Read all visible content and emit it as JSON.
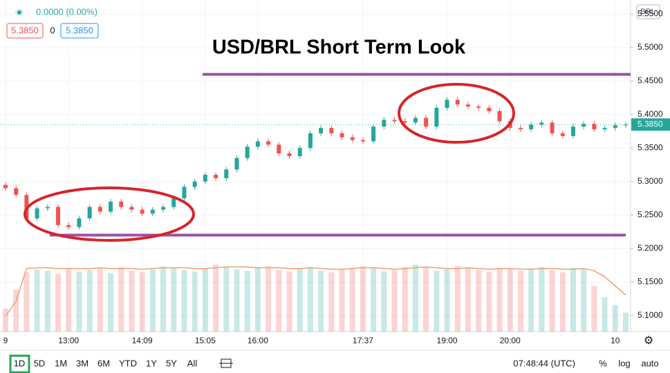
{
  "header": {
    "change": "0.0000 (0.00%)",
    "bid": "5.3850",
    "spread": "0",
    "ask": "5.3850",
    "currency": "BRL"
  },
  "chart_data": {
    "type": "candlestick",
    "title": "USD/BRL Short Term Look",
    "categories": [
      "9",
      null,
      null,
      null,
      null,
      null,
      "13:00",
      null,
      null,
      null,
      null,
      null,
      null,
      "14:09",
      null,
      null,
      null,
      null,
      null,
      "15:05",
      null,
      null,
      null,
      null,
      "16:00",
      null,
      null,
      null,
      null,
      null,
      null,
      null,
      null,
      null,
      "17:37",
      null,
      null,
      null,
      null,
      null,
      null,
      null,
      "19:00",
      null,
      null,
      null,
      null,
      null,
      "20:00",
      null,
      null,
      null,
      null,
      null,
      null,
      null,
      null,
      null,
      "10",
      null
    ],
    "open": [
      5.295,
      5.29,
      5.28,
      5.245,
      5.26,
      5.262,
      5.235,
      5.232,
      5.245,
      5.262,
      5.255,
      5.27,
      5.262,
      5.258,
      5.252,
      5.258,
      5.262,
      5.275,
      5.292,
      5.3,
      5.31,
      5.305,
      5.318,
      5.335,
      5.352,
      5.36,
      5.355,
      5.342,
      5.338,
      5.35,
      5.372,
      5.38,
      5.372,
      5.366,
      5.362,
      5.36,
      5.382,
      5.392,
      5.39,
      5.388,
      5.395,
      5.382,
      5.41,
      5.422,
      5.415,
      5.412,
      5.41,
      5.405,
      5.39,
      5.38,
      5.378,
      5.385,
      5.388,
      5.372,
      5.368,
      5.382,
      5.386,
      5.378,
      5.38,
      5.384
    ],
    "high": [
      5.299,
      5.294,
      5.284,
      5.264,
      5.266,
      5.266,
      5.239,
      5.249,
      5.266,
      5.266,
      5.274,
      5.274,
      5.266,
      5.262,
      5.262,
      5.266,
      5.279,
      5.296,
      5.304,
      5.314,
      5.314,
      5.322,
      5.339,
      5.356,
      5.364,
      5.364,
      5.359,
      5.346,
      5.354,
      5.376,
      5.384,
      5.384,
      5.376,
      5.37,
      5.366,
      5.386,
      5.396,
      5.396,
      5.394,
      5.399,
      5.399,
      5.414,
      5.426,
      5.426,
      5.419,
      5.416,
      5.414,
      5.409,
      5.394,
      5.384,
      5.389,
      5.392,
      5.392,
      5.376,
      5.386,
      5.39,
      5.39,
      5.384,
      5.388,
      5.389
    ],
    "low": [
      5.286,
      5.276,
      5.241,
      5.241,
      5.256,
      5.231,
      5.228,
      5.228,
      5.241,
      5.251,
      5.251,
      5.258,
      5.254,
      5.248,
      5.248,
      5.254,
      5.258,
      5.271,
      5.288,
      5.296,
      5.301,
      5.301,
      5.314,
      5.331,
      5.348,
      5.351,
      5.338,
      5.334,
      5.334,
      5.346,
      5.368,
      5.368,
      5.362,
      5.358,
      5.356,
      5.356,
      5.378,
      5.386,
      5.384,
      5.384,
      5.378,
      5.378,
      5.406,
      5.411,
      5.408,
      5.406,
      5.401,
      5.386,
      5.376,
      5.374,
      5.374,
      5.381,
      5.368,
      5.364,
      5.364,
      5.378,
      5.374,
      5.374,
      5.376,
      5.38
    ],
    "close": [
      5.29,
      5.28,
      5.245,
      5.26,
      5.262,
      5.235,
      5.232,
      5.245,
      5.262,
      5.255,
      5.27,
      5.262,
      5.258,
      5.252,
      5.258,
      5.262,
      5.275,
      5.292,
      5.3,
      5.31,
      5.305,
      5.318,
      5.335,
      5.352,
      5.36,
      5.355,
      5.342,
      5.338,
      5.35,
      5.372,
      5.38,
      5.372,
      5.366,
      5.362,
      5.36,
      5.382,
      5.392,
      5.39,
      5.388,
      5.395,
      5.382,
      5.41,
      5.422,
      5.415,
      5.412,
      5.41,
      5.405,
      5.39,
      5.38,
      5.378,
      5.385,
      5.388,
      5.372,
      5.368,
      5.382,
      5.386,
      5.378,
      5.38,
      5.384,
      5.385
    ],
    "up_color": "#26a69a",
    "down_color": "#ef5350",
    "ylim": [
      5.076,
      5.571
    ],
    "yticks": [
      {
        "value": 5.1,
        "label": "5.1000"
      },
      {
        "value": 5.15,
        "label": "5.1500"
      },
      {
        "value": 5.2,
        "label": "5.2000"
      },
      {
        "value": 5.25,
        "label": "5.2500"
      },
      {
        "value": 5.3,
        "label": "5.3000"
      },
      {
        "value": 5.35,
        "label": "5.3500"
      },
      {
        "value": 5.4,
        "label": "5.4000"
      },
      {
        "value": 5.45,
        "label": "5.4500"
      },
      {
        "value": 5.5,
        "label": "5.5000"
      },
      {
        "value": 5.55,
        "label": "5.5500"
      }
    ],
    "grid": true,
    "last_price": {
      "value": 5.385,
      "label": "5.3850"
    },
    "levels": [
      5.46,
      5.22
    ],
    "level_color": "#9c4fa8",
    "volume": {
      "ylim": [
        0,
        100
      ],
      "ma_color": "#f0a070",
      "values": [
        30,
        55,
        78,
        82,
        80,
        76,
        84,
        79,
        81,
        83,
        77,
        85,
        80,
        78,
        82,
        86,
        84,
        81,
        79,
        83,
        88,
        85,
        82,
        80,
        84,
        86,
        81,
        79,
        83,
        85,
        80,
        78,
        82,
        84,
        86,
        83,
        79,
        81,
        85,
        88,
        84,
        80,
        82,
        86,
        83,
        81,
        79,
        84,
        82,
        80,
        83,
        85,
        81,
        78,
        84,
        82,
        60,
        45,
        35,
        25
      ],
      "ma": [
        20,
        40,
        83,
        84,
        84,
        83,
        83,
        83,
        83,
        84,
        83,
        83,
        83,
        82,
        83,
        84,
        84,
        84,
        83,
        83,
        84,
        85,
        85,
        85,
        84,
        84,
        84,
        83,
        83,
        84,
        83,
        82,
        82,
        83,
        84,
        84,
        83,
        82,
        83,
        84,
        85,
        84,
        83,
        83,
        84,
        83,
        82,
        83,
        83,
        82,
        82,
        83,
        83,
        82,
        82,
        83,
        80,
        72,
        60,
        48
      ]
    }
  },
  "toolbar": {
    "ranges": [
      "1D",
      "5D",
      "1M",
      "3M",
      "6M",
      "YTD",
      "1Y",
      "5Y",
      "All"
    ],
    "time": "07:48:44 (UTC)",
    "options": [
      "%",
      "log",
      "auto"
    ]
  }
}
